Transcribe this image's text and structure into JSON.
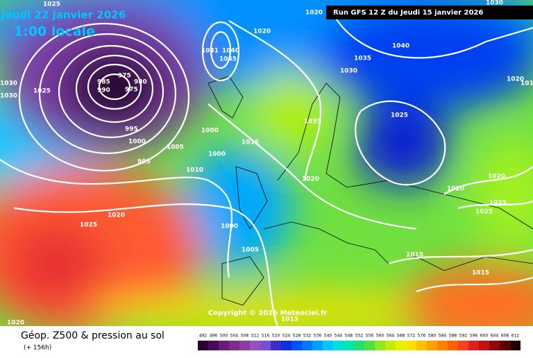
{
  "header": {
    "date": "Jeudi 22 janvier 2026",
    "time": "1:00 locale",
    "run": "Run GFS 12 Z du Jeudi 15 janvier 2026"
  },
  "isobars": {
    "labels": [
      1025,
      1030,
      1030,
      1025,
      985,
      975,
      980,
      990,
      975,
      995,
      1000,
      995,
      1005,
      1010,
      1000,
      1000,
      1015,
      1020,
      1020,
      1041,
      1040,
      1045,
      1035,
      1030,
      1040,
      1035,
      1020,
      1025,
      1020,
      1020,
      1025,
      1025,
      1020,
      1015,
      1030,
      1015,
      1015,
      1015,
      1020,
      1025,
      1000,
      1005,
      1020
    ]
  },
  "copyright": "Copyright © 2026 Meteociel.fr",
  "footer": {
    "title": "Géop. Z500 & pression au sol",
    "subtitle": "(+ 156h)"
  },
  "legend": {
    "levels": [
      492,
      496,
      500,
      504,
      508,
      512,
      516,
      520,
      524,
      528,
      532,
      536,
      540,
      544,
      548,
      552,
      556,
      560,
      564,
      568,
      572,
      576,
      580,
      584,
      588,
      592,
      596,
      600,
      604,
      608,
      612
    ],
    "colors": [
      "#2a0030",
      "#4b0a5a",
      "#6a1a7a",
      "#7e2b8f",
      "#8c3aa6",
      "#9a4fc0",
      "#7a4fd6",
      "#3a2ccf",
      "#1030e0",
      "#0050ff",
      "#0078ff",
      "#00a0ff",
      "#00c8ff",
      "#00e0e0",
      "#00e8b0",
      "#20e070",
      "#50e040",
      "#90e820",
      "#c0f000",
      "#e8f000",
      "#ffe000",
      "#ffc000",
      "#ffa000",
      "#ff8000",
      "#ff6000",
      "#f84020",
      "#e02020",
      "#c01010",
      "#900808",
      "#600000",
      "#200000"
    ]
  }
}
